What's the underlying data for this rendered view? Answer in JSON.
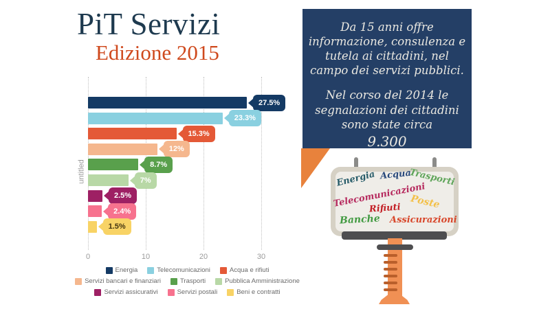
{
  "header": {
    "title": "PiT Servizi",
    "subtitle": "Edizione 2015",
    "title_color": "#1e3a4f",
    "subtitle_color": "#cf491d"
  },
  "chart_data": {
    "type": "bar",
    "orientation": "horizontal",
    "title": "",
    "xlabel": "",
    "ylabel": "untitled",
    "xlim": [
      0,
      32
    ],
    "x_ticks": [
      "0",
      "10",
      "20",
      "30"
    ],
    "x_tick_values": [
      0,
      10,
      20,
      30
    ],
    "grid": "dotted-vertical",
    "legend_position": "bottom",
    "categories": [
      "Energia",
      "Telecomunicazioni",
      "Acqua e rifiuti",
      "Servizi bancari e finanziari",
      "Trasporti",
      "Pubblica Amministrazione",
      "Servizi assicurativi",
      "Servizi postali",
      "Beni e contratti"
    ],
    "values": [
      27.5,
      23.3,
      15.3,
      12,
      8.7,
      7,
      2.5,
      2.4,
      1.5
    ],
    "value_labels": [
      "27.5%",
      "23.3%",
      "15.3%",
      "12%",
      "8.7%",
      "7%",
      "2.5%",
      "2.4%",
      "1.5%"
    ],
    "bar_colors": [
      "#143a64",
      "#8ad0e0",
      "#e45937",
      "#f5b78e",
      "#59a04c",
      "#b8d8a6",
      "#9e2064",
      "#f7728e",
      "#f8d365"
    ],
    "label_text_colors": [
      "#ffffff",
      "#ffffff",
      "#ffffff",
      "#ffffff",
      "#ffffff",
      "#ffffff",
      "#ffffff",
      "#ffffff",
      "#433410"
    ]
  },
  "bubble": {
    "bg_color": "#243f66",
    "text_color": "#eae8e1",
    "tail_color": "#e8823c",
    "paragraph1": "Da 15 anni offre informazione, consulenza e tutela ai cittadini, nel campo dei servizi pubblici.",
    "paragraph2": "Nel corso del 2014 le segnalazioni dei cittadini sono state circa",
    "number": "9.300"
  },
  "billboard": {
    "words": [
      {
        "text": "Energia",
        "color": "#265b68"
      },
      {
        "text": "Acqua",
        "color": "#2a4a7c"
      },
      {
        "text": "Trasporti",
        "color": "#5fa55a"
      },
      {
        "text": "Telecomunicazioni",
        "color": "#b62a5e"
      },
      {
        "text": "Poste",
        "color": "#f3c14b"
      },
      {
        "text": "Rifiuti",
        "color": "#c32026"
      },
      {
        "text": "Banche",
        "color": "#439b43"
      },
      {
        "text": "Assicurazioni",
        "color": "#d8472b"
      }
    ]
  }
}
